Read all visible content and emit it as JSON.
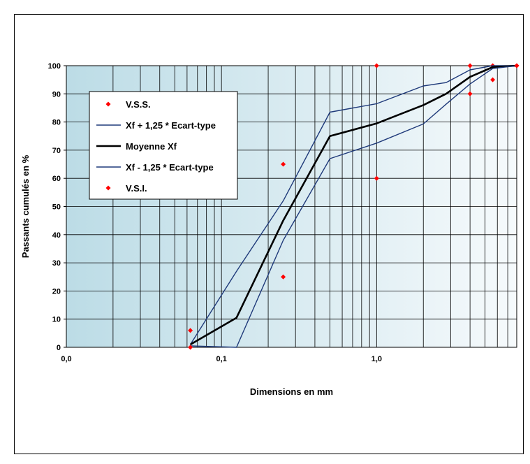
{
  "chart_data": {
    "type": "line",
    "xscale": "log",
    "xlim": [
      0.01,
      8
    ],
    "ylim": [
      0,
      100
    ],
    "xlabel": "Dimensions en mm",
    "ylabel": "Passants cumulés en %",
    "x_tick_labels": [
      {
        "x": 0.01,
        "label": "0,0"
      },
      {
        "x": 0.1,
        "label": "0,1"
      },
      {
        "x": 1,
        "label": "1,0"
      }
    ],
    "y_ticks": [
      0,
      10,
      20,
      30,
      40,
      50,
      60,
      70,
      80,
      90,
      100
    ],
    "grid": true,
    "legend_position": "top-left",
    "series": [
      {
        "name": "V.S.S.",
        "style": "marker",
        "color": "#ff0000",
        "points": [
          [
            0.063,
            6
          ],
          [
            0.25,
            65
          ],
          [
            1,
            100
          ],
          [
            4,
            100
          ],
          [
            5.6,
            100
          ],
          [
            8,
            100
          ]
        ]
      },
      {
        "name": "Xf + 1,25 * Ecart-type",
        "style": "line",
        "color": "#1f3a7a",
        "points": [
          [
            0.063,
            1
          ],
          [
            0.125,
            27
          ],
          [
            0.25,
            52
          ],
          [
            0.5,
            83.5
          ],
          [
            1,
            86.5
          ],
          [
            2,
            92.8
          ],
          [
            2.8,
            94
          ],
          [
            4,
            98.5
          ],
          [
            5.6,
            100
          ],
          [
            8,
            100
          ]
        ]
      },
      {
        "name": "Moyenne Xf",
        "style": "thickline",
        "color": "#000000",
        "points": [
          [
            0.063,
            1
          ],
          [
            0.125,
            10.5
          ],
          [
            0.25,
            45
          ],
          [
            0.5,
            75
          ],
          [
            1,
            79.5
          ],
          [
            2,
            86
          ],
          [
            2.8,
            90
          ],
          [
            4,
            96
          ],
          [
            5.6,
            99.5
          ],
          [
            8,
            100
          ]
        ]
      },
      {
        "name": "Xf - 1,25 * Ecart-type",
        "style": "line",
        "color": "#1f3a7a",
        "points": [
          [
            0.063,
            0.5
          ],
          [
            0.125,
            0
          ],
          [
            0.25,
            38
          ],
          [
            0.5,
            67
          ],
          [
            1,
            72.5
          ],
          [
            2,
            79.3
          ],
          [
            2.8,
            86.3
          ],
          [
            4,
            93.5
          ],
          [
            5.6,
            99
          ],
          [
            8,
            100
          ]
        ]
      },
      {
        "name": "V.S.I.",
        "style": "marker",
        "color": "#ff0000",
        "points": [
          [
            0.063,
            0
          ],
          [
            0.25,
            25
          ],
          [
            1,
            60
          ],
          [
            4,
            90
          ],
          [
            5.6,
            95
          ],
          [
            8,
            100
          ]
        ]
      }
    ]
  }
}
